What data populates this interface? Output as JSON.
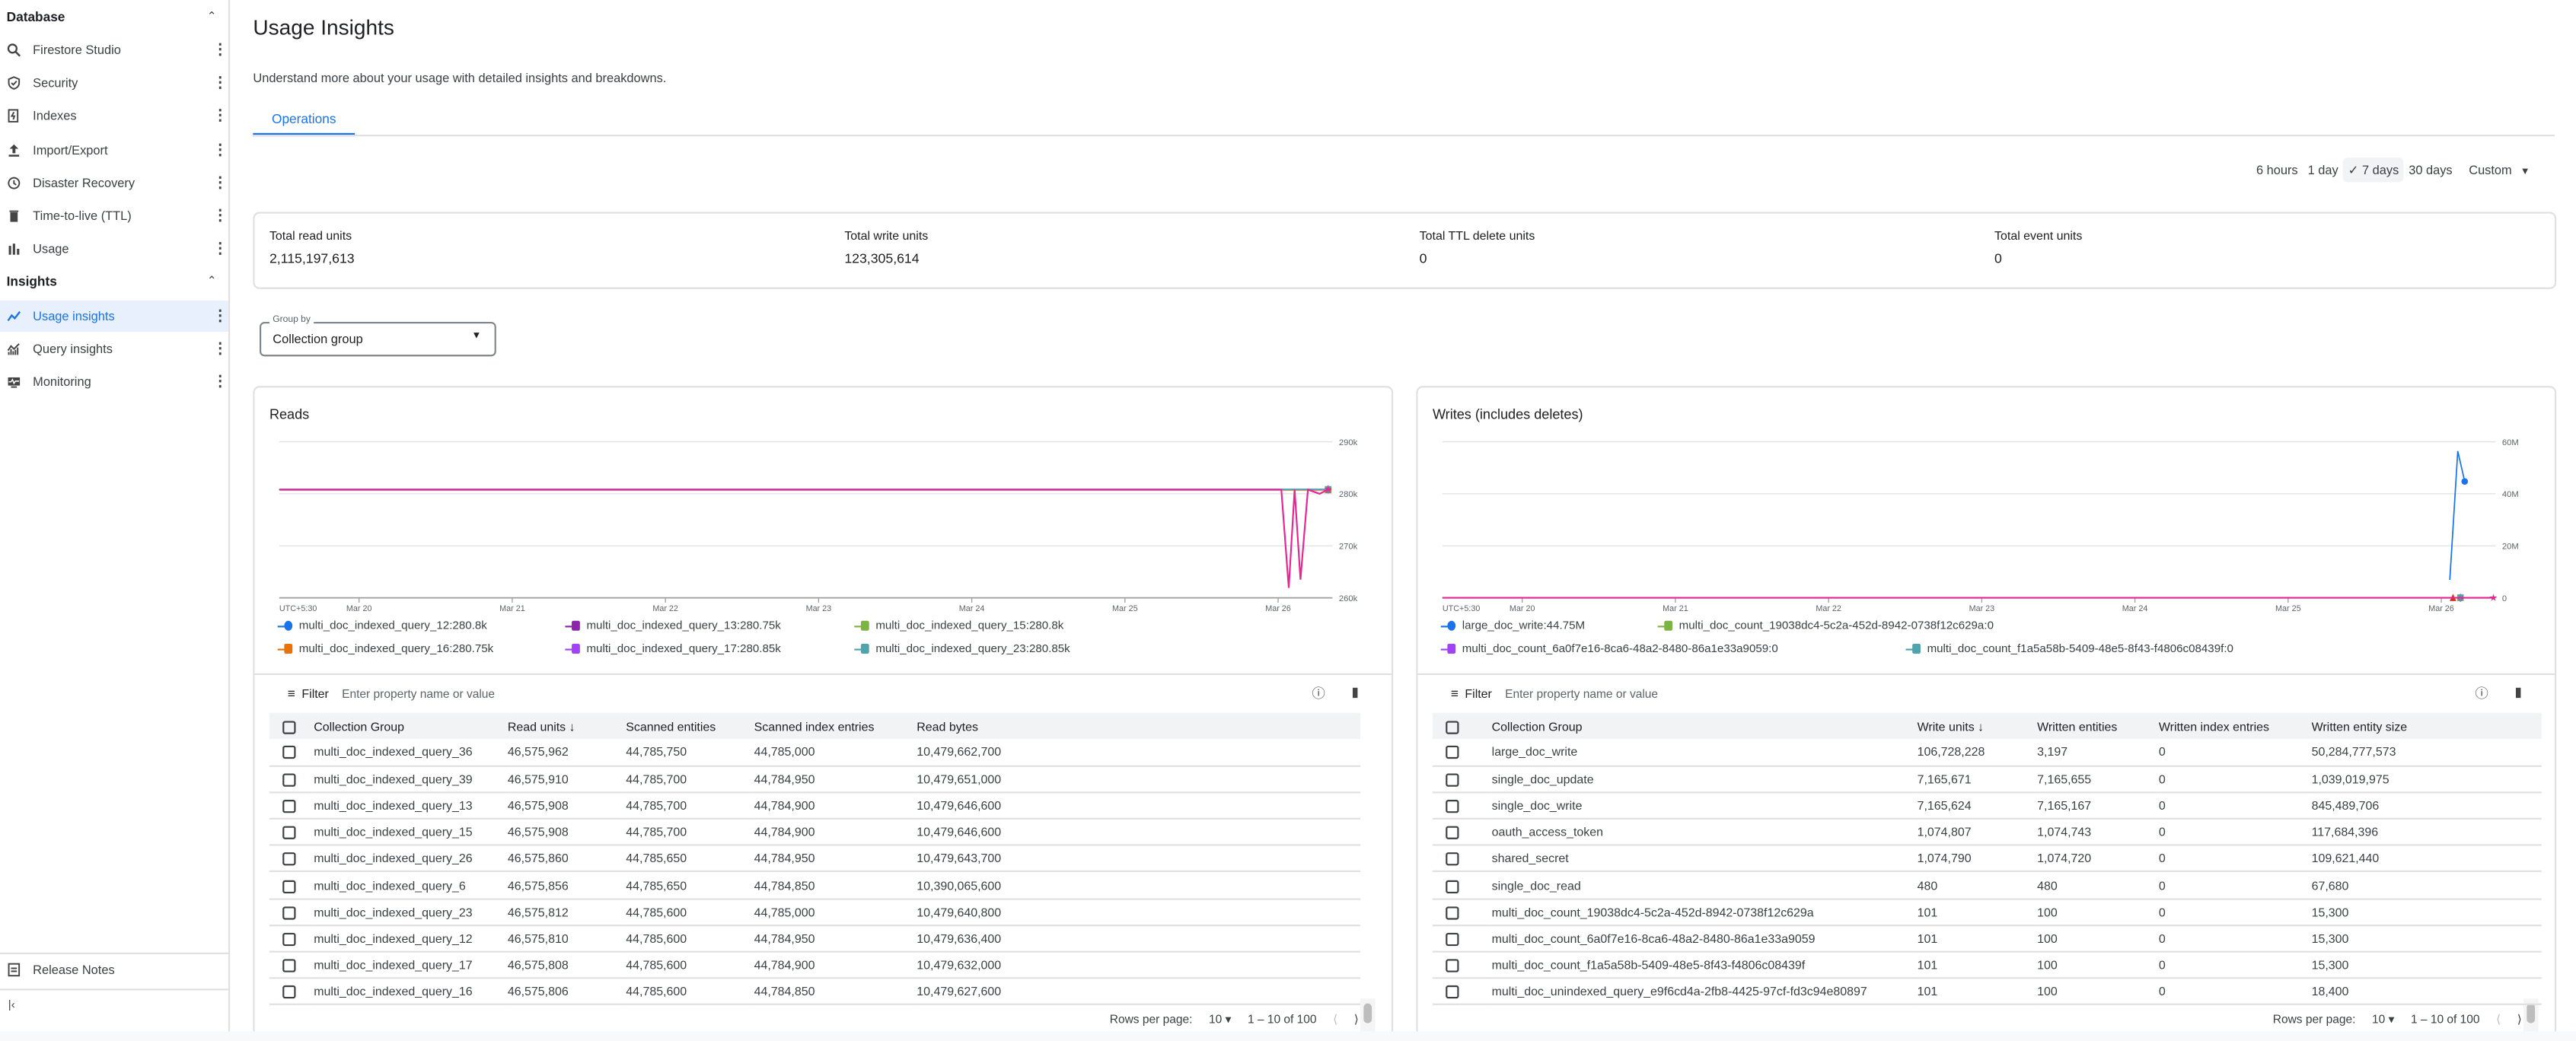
{
  "sidebar": {
    "database_header": "Database",
    "database_items": [
      {
        "label": "Firestore Studio",
        "icon": "search-icon"
      },
      {
        "label": "Security",
        "icon": "shield-icon"
      },
      {
        "label": "Indexes",
        "icon": "index-icon"
      },
      {
        "label": "Import/Export",
        "icon": "upload-icon"
      },
      {
        "label": "Disaster Recovery",
        "icon": "history-icon"
      },
      {
        "label": "Time-to-live (TTL)",
        "icon": "trash-icon"
      },
      {
        "label": "Usage",
        "icon": "bar-chart-icon"
      }
    ],
    "insights_header": "Insights",
    "insights_items": [
      {
        "label": "Usage insights",
        "icon": "trend-icon",
        "active": true
      },
      {
        "label": "Query insights",
        "icon": "query-chart-icon"
      },
      {
        "label": "Monitoring",
        "icon": "monitor-icon"
      }
    ],
    "release_notes": "Release Notes",
    "collapse_icon": "collapse-left-icon"
  },
  "page": {
    "title": "Usage Insights",
    "subtitle": "Understand more about your usage with detailed insights and breakdowns.",
    "tabs": [
      {
        "label": "Operations",
        "active": true
      }
    ]
  },
  "time_range": {
    "options": [
      "6 hours",
      "1 day",
      "7 days",
      "30 days"
    ],
    "selected": "7 days",
    "custom": "Custom"
  },
  "summary": [
    {
      "label": "Total read units",
      "value": "2,115,197,613"
    },
    {
      "label": "Total write units",
      "value": "123,305,614"
    },
    {
      "label": "Total TTL delete units",
      "value": "0"
    },
    {
      "label": "Total event units",
      "value": "0"
    }
  ],
  "group_by": {
    "label": "Group by",
    "value": "Collection group"
  },
  "reads": {
    "title": "Reads",
    "filter_label": "Filter",
    "filter_placeholder": "Enter property name or value",
    "columns": [
      "Collection Group",
      "Read units",
      "Scanned entities",
      "Scanned index entries",
      "Read bytes"
    ],
    "sort_column": "Read units",
    "rows": [
      [
        "multi_doc_indexed_query_36",
        "46,575,962",
        "44,785,750",
        "44,785,000",
        "10,479,662,700"
      ],
      [
        "multi_doc_indexed_query_39",
        "46,575,910",
        "44,785,700",
        "44,784,950",
        "10,479,651,000"
      ],
      [
        "multi_doc_indexed_query_13",
        "46,575,908",
        "44,785,700",
        "44,784,900",
        "10,479,646,600"
      ],
      [
        "multi_doc_indexed_query_15",
        "46,575,908",
        "44,785,700",
        "44,784,900",
        "10,479,646,600"
      ],
      [
        "multi_doc_indexed_query_26",
        "46,575,860",
        "44,785,650",
        "44,784,950",
        "10,479,643,700"
      ],
      [
        "multi_doc_indexed_query_6",
        "46,575,856",
        "44,785,650",
        "44,784,850",
        "10,390,065,600"
      ],
      [
        "multi_doc_indexed_query_23",
        "46,575,812",
        "44,785,600",
        "44,785,000",
        "10,479,640,800"
      ],
      [
        "multi_doc_indexed_query_12",
        "46,575,810",
        "44,785,600",
        "44,784,950",
        "10,479,636,400"
      ],
      [
        "multi_doc_indexed_query_17",
        "46,575,808",
        "44,785,600",
        "44,784,900",
        "10,479,632,000"
      ],
      [
        "multi_doc_indexed_query_16",
        "46,575,806",
        "44,785,600",
        "44,784,850",
        "10,479,627,600"
      ]
    ],
    "rows_per_page_label": "Rows per page:",
    "rows_per_page": "10",
    "page_range": "1 – 10 of 100"
  },
  "writes": {
    "title": "Writes (includes deletes)",
    "filter_label": "Filter",
    "filter_placeholder": "Enter property name or value",
    "columns": [
      "Collection Group",
      "Write units",
      "Written entities",
      "Written index entries",
      "Written entity size"
    ],
    "sort_column": "Write units",
    "rows": [
      [
        "large_doc_write",
        "106,728,228",
        "3,197",
        "0",
        "50,284,777,573"
      ],
      [
        "single_doc_update",
        "7,165,671",
        "7,165,655",
        "0",
        "1,039,019,975"
      ],
      [
        "single_doc_write",
        "7,165,624",
        "7,165,167",
        "0",
        "845,489,706"
      ],
      [
        "oauth_access_token",
        "1,074,807",
        "1,074,743",
        "0",
        "117,684,396"
      ],
      [
        "shared_secret",
        "1,074,790",
        "1,074,720",
        "0",
        "109,621,440"
      ],
      [
        "single_doc_read",
        "480",
        "480",
        "0",
        "67,680"
      ],
      [
        "multi_doc_count_19038dc4-5c2a-452d-8942-0738f12c629a",
        "101",
        "100",
        "0",
        "15,300"
      ],
      [
        "multi_doc_count_6a0f7e16-8ca6-48a2-8480-86a1e33a9059",
        "101",
        "100",
        "0",
        "15,300"
      ],
      [
        "multi_doc_count_f1a5a58b-5409-48e5-8f43-f4806c08439f",
        "101",
        "100",
        "0",
        "15,300"
      ],
      [
        "multi_doc_unindexed_query_e9f6cd4a-2fb8-4425-97cf-fd3c94e80897",
        "101",
        "100",
        "0",
        "18,400"
      ]
    ],
    "rows_per_page_label": "Rows per page:",
    "rows_per_page": "10",
    "page_range": "1 – 10 of 100"
  },
  "chart_data": [
    {
      "type": "line",
      "title": "Reads",
      "timezone_label": "UTC+5:30",
      "xlim": [
        "Mar 19 11:30",
        "Mar 26 08:30"
      ],
      "x_ticks": [
        "Mar 20",
        "Mar 21",
        "Mar 22",
        "Mar 23",
        "Mar 24",
        "Mar 25",
        "Mar 26"
      ],
      "ylim": [
        260000,
        290000
      ],
      "y_ticks": [
        {
          "v": 260000,
          "label": "260k"
        },
        {
          "v": 270000,
          "label": "270k"
        },
        {
          "v": 280000,
          "label": "280k"
        },
        {
          "v": 290000,
          "label": "290k"
        }
      ],
      "grid": true,
      "legend_position": "bottom",
      "series": [
        {
          "name": "multi_doc_indexed_query_12",
          "legend_value": "280.8k",
          "color": "#1a73e8",
          "marker": "circle",
          "x": [
            "Mar 19 11:30",
            "Mar 26 00:30",
            "Mar 26 07:50"
          ],
          "y": [
            280800,
            280800,
            280800
          ]
        },
        {
          "name": "multi_doc_indexed_query_13",
          "legend_value": "280.75k",
          "color": "#8e24aa",
          "marker": "square",
          "x": [
            "Mar 19 11:30",
            "Mar 26 00:30",
            "Mar 26 07:50"
          ],
          "y": [
            280750,
            280750,
            280750
          ]
        },
        {
          "name": "multi_doc_indexed_query_15",
          "legend_value": "280.8k",
          "color": "#7cb342",
          "marker": "square",
          "x": [
            "Mar 19 11:30",
            "Mar 26 00:30",
            "Mar 26 07:50"
          ],
          "y": [
            280800,
            280800,
            280800
          ]
        },
        {
          "name": "multi_doc_indexed_query_16",
          "legend_value": "280.75k",
          "color": "#e8710a",
          "marker": "cross",
          "x": [
            "Mar 19 11:30",
            "Mar 26 00:30",
            "Mar 26 07:50"
          ],
          "y": [
            280750,
            280750,
            280750
          ]
        },
        {
          "name": "multi_doc_indexed_query_17",
          "legend_value": "280.85k",
          "color": "#a142f4",
          "marker": "diamond",
          "x": [
            "Mar 19 11:30",
            "Mar 26 00:30",
            "Mar 26 07:50"
          ],
          "y": [
            280850,
            280850,
            280850
          ]
        },
        {
          "name": "multi_doc_indexed_query_23",
          "legend_value": "280.85k",
          "color": "#4fa3ad",
          "marker": "triangle-down",
          "x": [
            "Mar 19 11:30",
            "Mar 26 00:30",
            "Mar 26 07:50"
          ],
          "y": [
            280850,
            280850,
            280850
          ]
        },
        {
          "color": "#e52592",
          "marker": "star",
          "x": [
            "Mar 19 11:30",
            "Mar 26 00:30",
            "Mar 26 01:40",
            "Mar 26 02:35",
            "Mar 26 03:30",
            "Mar 26 04:40",
            "Mar 26 06:30",
            "Mar 26 07:50"
          ],
          "y": [
            280800,
            280800,
            261900,
            280800,
            263500,
            280800,
            280000,
            280850
          ]
        }
      ]
    },
    {
      "type": "line",
      "title": "Writes (includes deletes)",
      "timezone_label": "UTC+5:30",
      "xlim": [
        "Mar 19 11:30",
        "Mar 26 08:30"
      ],
      "x_ticks": [
        "Mar 20",
        "Mar 21",
        "Mar 22",
        "Mar 23",
        "Mar 24",
        "Mar 25",
        "Mar 26"
      ],
      "ylim": [
        0,
        60000000
      ],
      "y_ticks": [
        {
          "v": 0,
          "label": "0"
        },
        {
          "v": 20000000,
          "label": "20M"
        },
        {
          "v": 40000000,
          "label": "40M"
        },
        {
          "v": 60000000,
          "label": "60M"
        }
      ],
      "grid": true,
      "legend_position": "bottom",
      "series": [
        {
          "name": "large_doc_write",
          "legend_value": "44.75M",
          "color": "#1a73e8",
          "marker": "circle",
          "x": [
            "Mar 26 01:20",
            "Mar 26 02:35",
            "Mar 26 03:40"
          ],
          "y": [
            6900000,
            56400000,
            44750000
          ]
        },
        {
          "name": "multi_doc_count_19038dc4-5c2a-452d-8942-0738f12c629a",
          "legend_value": "0",
          "color": "#7cb342",
          "marker": "square",
          "x": [
            "Mar 19 11:30",
            "Mar 26 03:00"
          ],
          "y": [
            0,
            0
          ]
        },
        {
          "name": "multi_doc_count_6a0f7e16-8ca6-48a2-8480-86a1e33a9059",
          "legend_value": "0",
          "color": "#a142f4",
          "marker": "diamond",
          "x": [
            "Mar 19 11:30",
            "Mar 26 03:00"
          ],
          "y": [
            0,
            0
          ]
        },
        {
          "name": "multi_doc_count_f1a5a58b-5409-48e5-8f43-f4806c08439f",
          "legend_value": "0",
          "color": "#4fa3ad",
          "marker": "triangle-down",
          "x": [
            "Mar 19 11:30",
            "Mar 26 03:00"
          ],
          "y": [
            0,
            0
          ]
        },
        {
          "color": "#d93025",
          "marker": "triangle",
          "x": [
            "Mar 19 11:30",
            "Mar 26 01:50"
          ],
          "y": [
            0,
            0
          ]
        },
        {
          "color": "#e52592",
          "marker": "star",
          "x": [
            "Mar 19 11:30",
            "Mar 26 08:10"
          ],
          "y": [
            0,
            0
          ]
        }
      ]
    }
  ]
}
